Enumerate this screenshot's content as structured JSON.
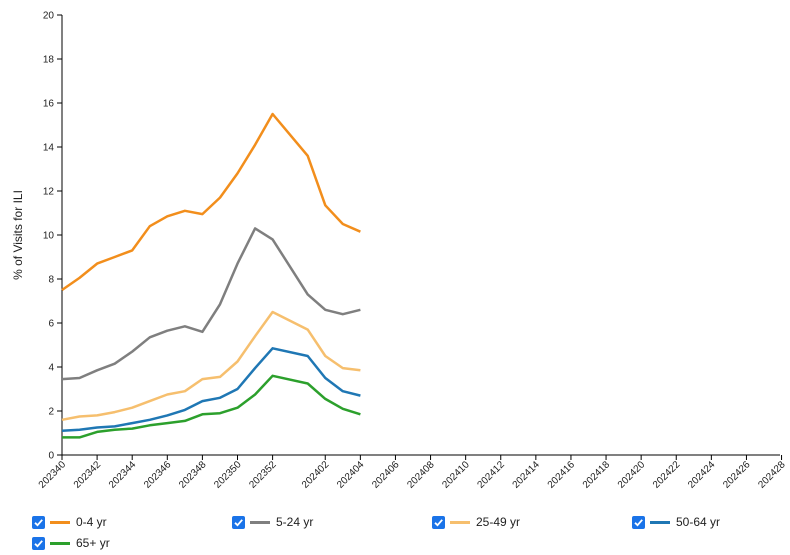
{
  "chart_data": {
    "type": "line",
    "ylabel": "% of Visits for ILI",
    "xlabel": "",
    "ylim": [
      0,
      20
    ],
    "yticks": [
      0,
      2,
      4,
      6,
      8,
      10,
      12,
      14,
      16,
      18,
      20
    ],
    "grid": false,
    "legend_placement": "bottom",
    "x": [
      "202340",
      "202341",
      "202342",
      "202343",
      "202344",
      "202345",
      "202346",
      "202347",
      "202348",
      "202349",
      "202350",
      "202351",
      "202352",
      "202401",
      "202402",
      "202403",
      "202404"
    ],
    "xticks": [
      "202340",
      "202342",
      "202344",
      "202346",
      "202348",
      "202350",
      "202352",
      "202402",
      "202404",
      "202406",
      "202408",
      "202410",
      "202412",
      "202414",
      "202416",
      "202418",
      "202420",
      "202422",
      "202424",
      "202426",
      "202428"
    ],
    "series": [
      {
        "name": "0-4 yr",
        "color": "#f28e1c",
        "values": [
          7.5,
          8.05,
          8.7,
          9.0,
          9.3,
          10.4,
          10.85,
          11.1,
          10.95,
          11.7,
          12.8,
          14.1,
          15.5,
          13.6,
          11.35,
          10.5,
          10.15
        ]
      },
      {
        "name": "5-24 yr",
        "color": "#7f7f7f",
        "values": [
          3.45,
          3.5,
          3.85,
          4.15,
          4.7,
          5.35,
          5.65,
          5.85,
          5.6,
          6.85,
          8.7,
          10.3,
          9.8,
          7.3,
          6.6,
          6.4,
          6.6
        ]
      },
      {
        "name": "25-49 yr",
        "color": "#f6bf6e",
        "values": [
          1.6,
          1.75,
          1.8,
          1.95,
          2.15,
          2.45,
          2.75,
          2.9,
          3.45,
          3.55,
          4.25,
          5.4,
          6.5,
          5.7,
          4.5,
          3.95,
          3.85
        ]
      },
      {
        "name": "50-64 yr",
        "color": "#1f77b4",
        "values": [
          1.1,
          1.15,
          1.25,
          1.3,
          1.45,
          1.6,
          1.8,
          2.05,
          2.45,
          2.6,
          3.0,
          3.95,
          4.85,
          4.5,
          3.5,
          2.9,
          2.7
        ]
      },
      {
        "name": "65+ yr",
        "color": "#2ca02c",
        "values": [
          0.8,
          0.8,
          1.05,
          1.15,
          1.2,
          1.35,
          1.45,
          1.55,
          1.85,
          1.9,
          2.15,
          2.75,
          3.6,
          3.25,
          2.55,
          2.1,
          1.85
        ]
      }
    ]
  },
  "legend": {
    "items": [
      {
        "label": "0-4 yr",
        "color": "#f28e1c",
        "checked": true
      },
      {
        "label": "5-24 yr",
        "color": "#7f7f7f",
        "checked": true
      },
      {
        "label": "25-49 yr",
        "color": "#f6bf6e",
        "checked": true
      },
      {
        "label": "50-64 yr",
        "color": "#1f77b4",
        "checked": true
      },
      {
        "label": "65+ yr",
        "color": "#2ca02c",
        "checked": true
      }
    ]
  }
}
